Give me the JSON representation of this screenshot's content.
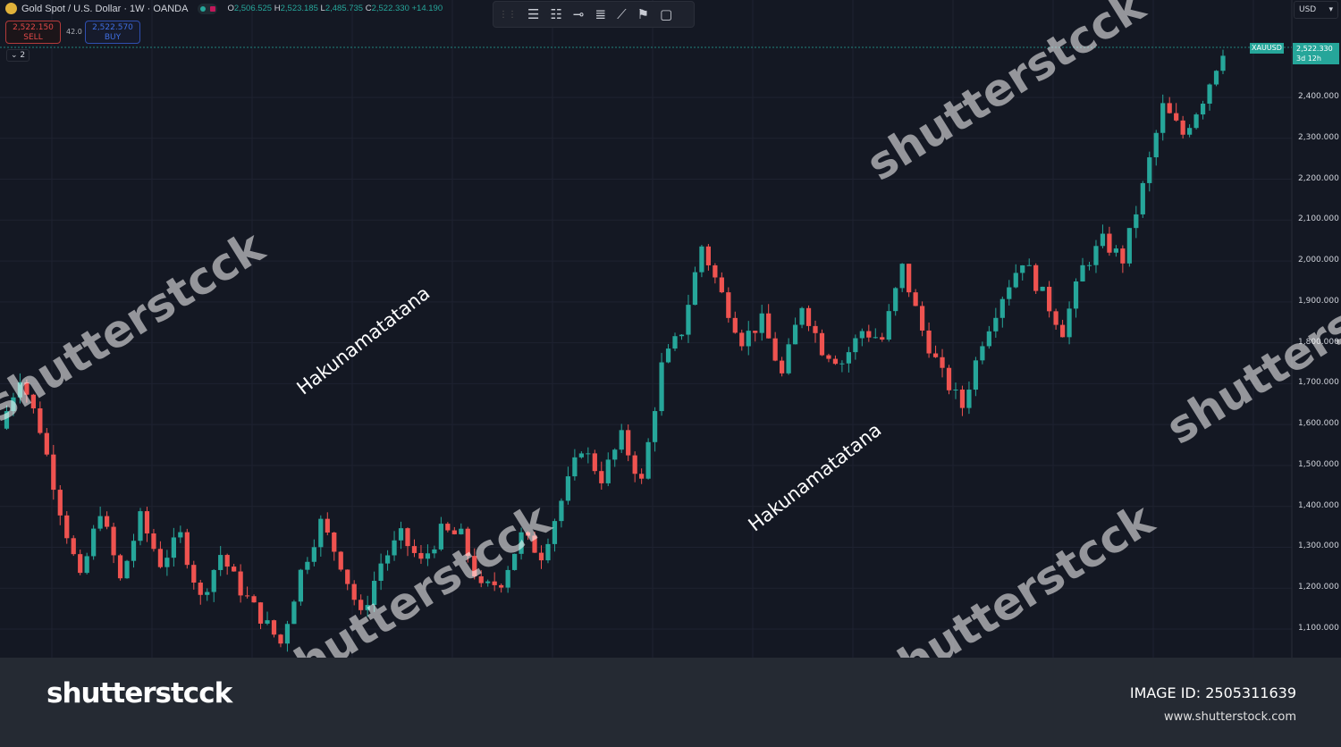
{
  "header": {
    "title": "Gold Spot / U.S. Dollar · 1W · OANDA",
    "ohlc": {
      "o_label": "O",
      "o": "2,506.525",
      "h_label": "H",
      "h": "2,523.185",
      "l_label": "L",
      "l": "2,485.735",
      "c_label": "C",
      "c": "2,522.330",
      "change": "+14.190"
    }
  },
  "trade": {
    "sell_price": "2,522.150",
    "sell_label": "SELL",
    "spread": "42.0",
    "buy_price": "2,522.570",
    "buy_label": "BUY"
  },
  "collapse_label": "⌄ 2",
  "currency": "USD",
  "price_tag": {
    "symbol": "XAUUSD",
    "price": "2,522.330",
    "countdown": "3d 12h"
  },
  "watermark": "shutterstᴄck",
  "overlay_text": "Hakunamatatana",
  "footer": {
    "logo": "shutterstᴄck",
    "image_id": "IMAGE ID: 2505311639",
    "url": "www.shutterstock.com"
  },
  "colors": {
    "up": "#26a69a",
    "down": "#ef5350",
    "background": "#141823"
  },
  "chart_data": {
    "type": "candlestick",
    "symbol": "XAUUSD",
    "interval": "1W",
    "ylim": [
      1050,
      2530
    ],
    "y_ticks": [
      "2,400.000",
      "2,300.000",
      "2,200.000",
      "2,100.000",
      "2,000.000",
      "1,900.000",
      "1,800.000",
      "1,700.000",
      "1,600.000",
      "1,500.000",
      "1,400.000",
      "1,300.000",
      "1,200.000",
      "1,100.000"
    ],
    "y_tick_values": [
      2400,
      2300,
      2200,
      2100,
      2000,
      1900,
      1800,
      1700,
      1600,
      1500,
      1400,
      1300,
      1200,
      1100
    ],
    "closes_sampled": [
      1590,
      1720,
      1590,
      1393,
      1218,
      1393,
      1218,
      1370,
      1262,
      1327,
      1174,
      1283,
      1196,
      1130,
      1065,
      1240,
      1360,
      1262,
      1130,
      1262,
      1327,
      1262,
      1338,
      1327,
      1196,
      1218,
      1327,
      1283,
      1414,
      1546,
      1470,
      1568,
      1458,
      1742,
      1830,
      2037,
      1917,
      1808,
      1852,
      1720,
      1895,
      1786,
      1753,
      1830,
      1808,
      1983,
      1830,
      1720,
      1644,
      1808,
      1917,
      2004,
      1917,
      1830,
      1983,
      2048,
      2004,
      2180,
      2376,
      2310,
      2398,
      2518
    ],
    "last": 2522.33,
    "grid": true
  }
}
